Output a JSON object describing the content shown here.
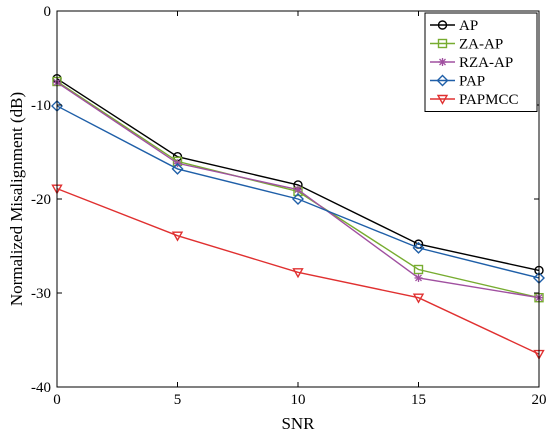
{
  "chart_data": {
    "type": "line",
    "title": "",
    "xlabel": "SNR",
    "ylabel": "Normalized Misalignment (dB)",
    "x": [
      0,
      5,
      10,
      15,
      20
    ],
    "xlim": [
      0,
      20
    ],
    "ylim": [
      -40,
      0
    ],
    "xticks": [
      "0",
      "5",
      "10",
      "15",
      "20"
    ],
    "yticks": [
      "0",
      "-10",
      "-20",
      "-30",
      "-40"
    ],
    "grid": false,
    "legend_position": "top-right",
    "series": [
      {
        "name": "AP",
        "color": "#000000",
        "marker": "circle",
        "values": [
          -7.2,
          -15.5,
          -18.5,
          -24.8,
          -27.6
        ]
      },
      {
        "name": "ZA-AP",
        "color": "#77ac30",
        "marker": "square",
        "values": [
          -7.5,
          -16.0,
          -19.2,
          -27.5,
          -30.5
        ]
      },
      {
        "name": "RZA-AP",
        "color": "#a050a0",
        "marker": "asterisk",
        "values": [
          -7.6,
          -16.2,
          -19.0,
          -28.4,
          -30.5
        ]
      },
      {
        "name": "PAP",
        "color": "#1f5fa8",
        "marker": "diamond",
        "values": [
          -10.1,
          -16.8,
          -20.0,
          -25.2,
          -28.4
        ]
      },
      {
        "name": "PAPMCC",
        "color": "#e03030",
        "marker": "triangle-down",
        "values": [
          -18.9,
          -23.9,
          -27.8,
          -30.5,
          -36.5
        ]
      }
    ]
  }
}
